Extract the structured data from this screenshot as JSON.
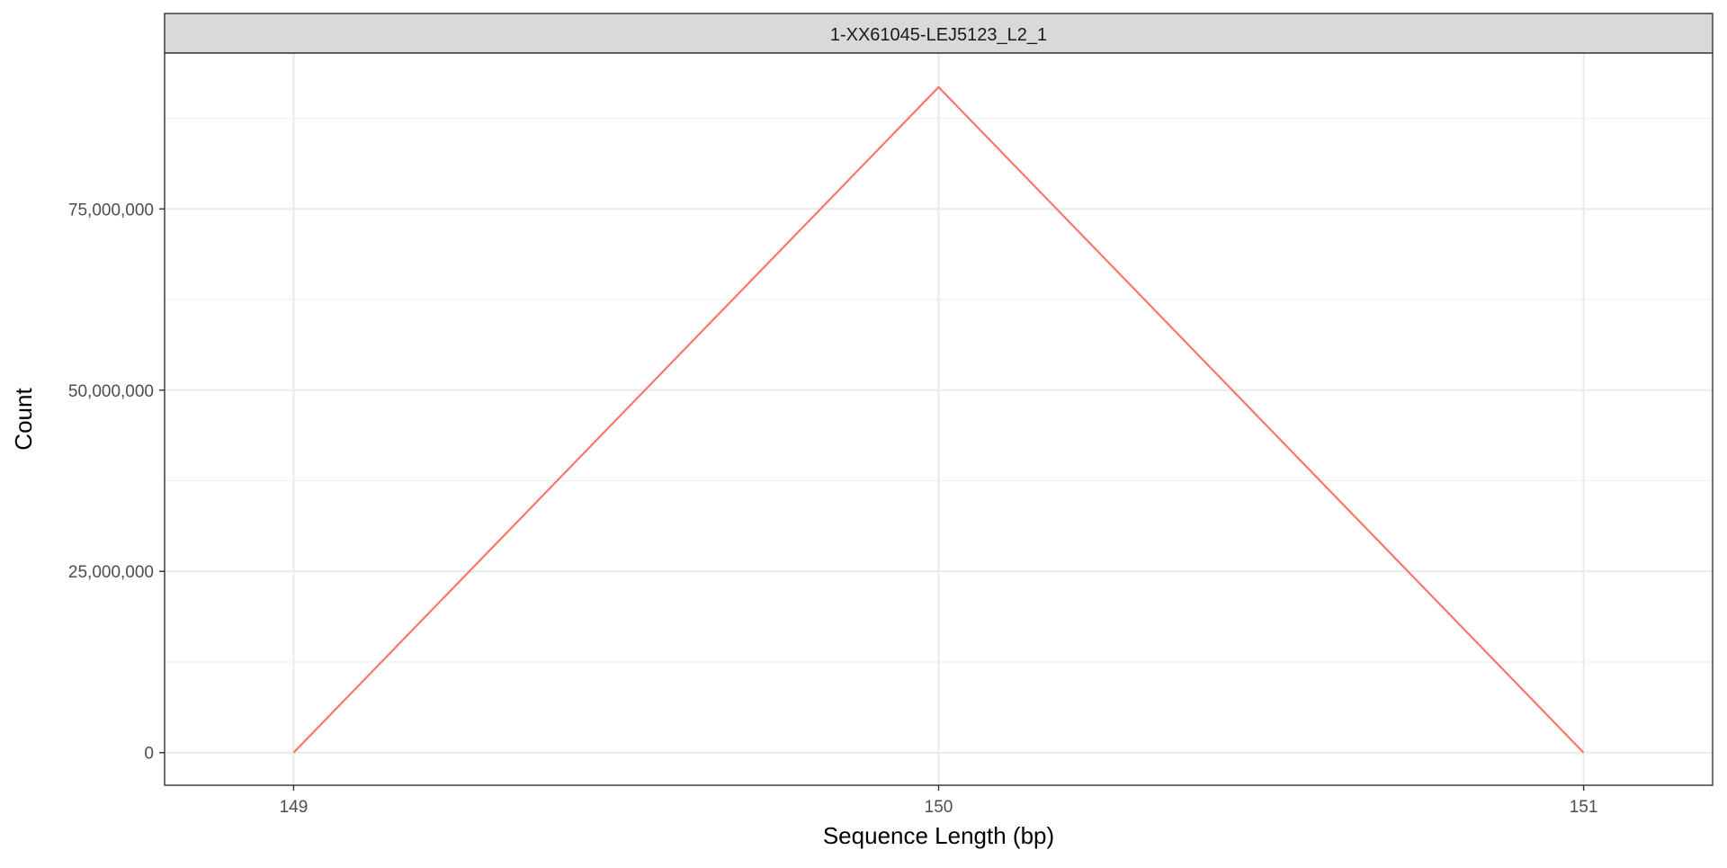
{
  "chart_data": {
    "type": "line",
    "facet_label": "1-XX61045-LEJ5123_L2_1",
    "xlabel": "Sequence Length (bp)",
    "ylabel": "Count",
    "x_ticks": [
      149,
      150,
      151
    ],
    "x_tick_labels": [
      "149",
      "150",
      "151"
    ],
    "y_ticks": [
      0,
      25000000,
      50000000,
      75000000
    ],
    "y_tick_labels": [
      "0",
      "25,000,000",
      "50,000,000",
      "75,000,000"
    ],
    "xlim": [
      148.8,
      151.2
    ],
    "ylim": [
      -4500000,
      96500000
    ],
    "grid": true,
    "legend": "none",
    "series": [
      {
        "color": "#F8766D",
        "x": [
          149,
          150,
          151
        ],
        "y": [
          0,
          91800000,
          0
        ]
      }
    ]
  }
}
